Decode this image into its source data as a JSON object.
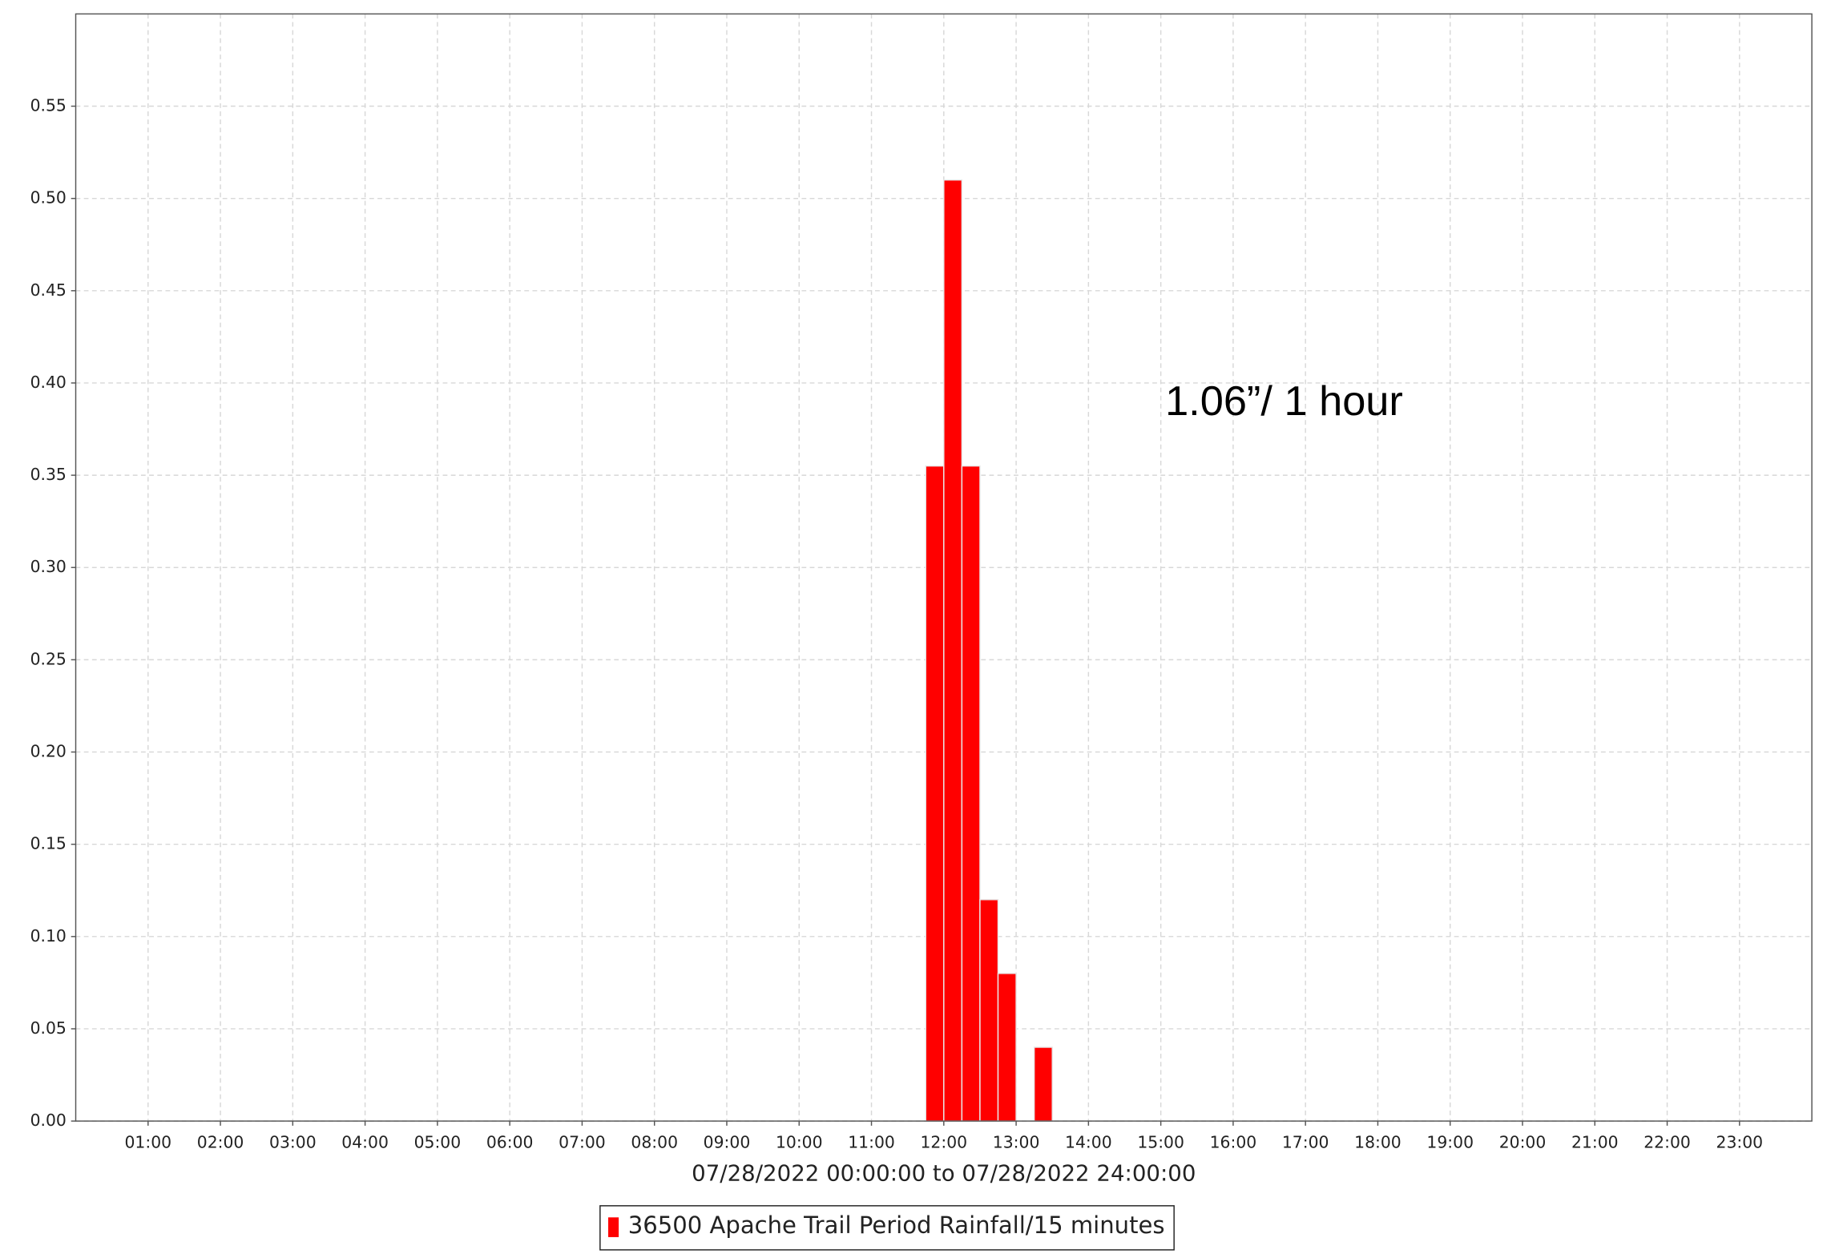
{
  "chart_data": {
    "type": "bar",
    "x_label": "07/28/2022 00:00:00 to 07/28/2022 24:00:00",
    "annotation": "1.06”/ 1 hour",
    "series": [
      {
        "name": "36500 Apache Trail Period Rainfall/15 minutes",
        "color": "#ff0000",
        "x": [
          11.75,
          12,
          12.25,
          12.5,
          12.75,
          13.25
        ],
        "values": [
          0.355,
          0.51,
          0.355,
          0.12,
          0.08,
          0.04
        ]
      }
    ],
    "xlim": [
      0,
      24
    ],
    "xticks": [
      {
        "value": 1,
        "label": "01:00"
      },
      {
        "value": 2,
        "label": "02:00"
      },
      {
        "value": 3,
        "label": "03:00"
      },
      {
        "value": 4,
        "label": "04:00"
      },
      {
        "value": 5,
        "label": "05:00"
      },
      {
        "value": 6,
        "label": "06:00"
      },
      {
        "value": 7,
        "label": "07:00"
      },
      {
        "value": 8,
        "label": "08:00"
      },
      {
        "value": 9,
        "label": "09:00"
      },
      {
        "value": 10,
        "label": "10:00"
      },
      {
        "value": 11,
        "label": "11:00"
      },
      {
        "value": 12,
        "label": "12:00"
      },
      {
        "value": 13,
        "label": "13:00"
      },
      {
        "value": 14,
        "label": "14:00"
      },
      {
        "value": 15,
        "label": "15:00"
      },
      {
        "value": 16,
        "label": "16:00"
      },
      {
        "value": 17,
        "label": "17:00"
      },
      {
        "value": 18,
        "label": "18:00"
      },
      {
        "value": 19,
        "label": "19:00"
      },
      {
        "value": 20,
        "label": "20:00"
      },
      {
        "value": 21,
        "label": "21:00"
      },
      {
        "value": 22,
        "label": "22:00"
      },
      {
        "value": 23,
        "label": "23:00"
      }
    ],
    "ylim": [
      0,
      0.6
    ],
    "yticks": [
      {
        "value": 0,
        "label": "0.00"
      },
      0.05,
      {
        "value": 0.1,
        "label": "0.10"
      },
      0.15,
      {
        "value": 0.2,
        "label": "0.20"
      },
      0.25,
      {
        "value": 0.3,
        "label": "0.30"
      },
      0.35,
      {
        "value": 0.4,
        "label": "0.40"
      },
      0.45,
      {
        "value": 0.5,
        "label": "0.50"
      },
      0.55
    ],
    "grid": true,
    "legend": "bottom"
  }
}
